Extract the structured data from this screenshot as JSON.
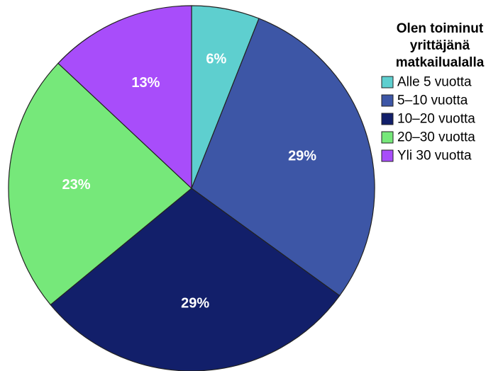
{
  "chart_data": {
    "type": "pie",
    "title": "",
    "legend_title_lines": [
      "Olen toiminut",
      "yrittäjänä",
      "matkailualalla"
    ],
    "legend_position": "right",
    "slices": [
      {
        "name": "Alle 5 vuotta",
        "value": 6,
        "label": "6%",
        "color": "#5ecfcf"
      },
      {
        "name": "5–10 vuotta",
        "value": 29,
        "label": "29%",
        "color": "#3d56a6"
      },
      {
        "name": "10–20 vuotta",
        "value": 29,
        "label": "29%",
        "color": "#121f6a"
      },
      {
        "name": "20–30 vuotta",
        "value": 23,
        "label": "23%",
        "color": "#76e87a"
      },
      {
        "name": "Yli 30 vuotta",
        "value": 13,
        "label": "13%",
        "color": "#a84dfa"
      }
    ]
  }
}
